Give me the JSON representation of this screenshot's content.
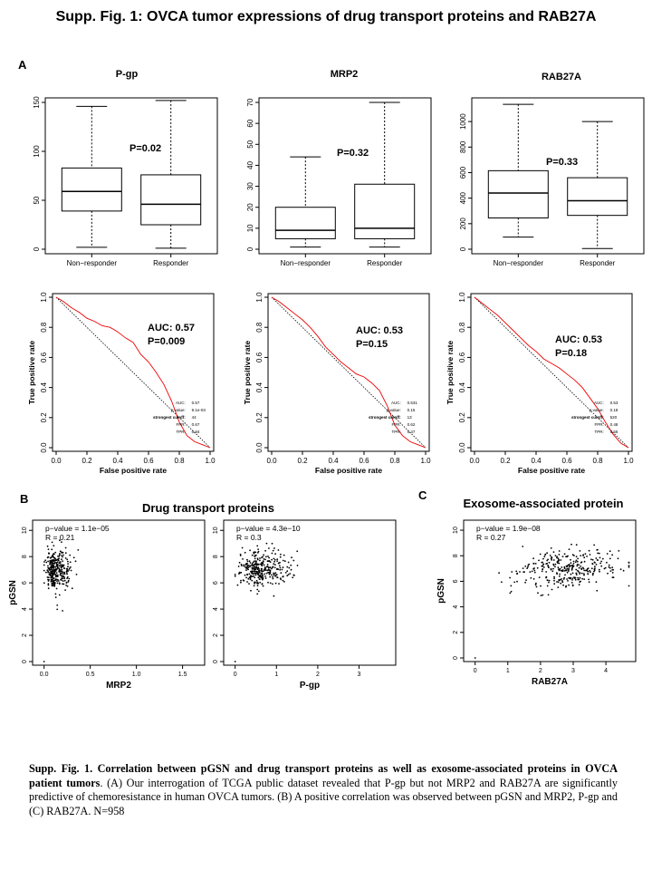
{
  "figure_title": "Supp. Fig. 1: OVCA tumor expressions of drug transport proteins and RAB27A",
  "panel_a": {
    "letter": "A",
    "boxplots": [
      {
        "name": "pgp",
        "title": "P-gp",
        "pvalue": "P=0.02",
        "yticks": [
          "0",
          "50",
          "100",
          "150"
        ],
        "ymax": 150,
        "groups": [
          {
            "label": "Non−responder",
            "min": 2,
            "q1": 39,
            "median": 59,
            "q3": 83,
            "max": 146
          },
          {
            "label": "Responder",
            "min": 1,
            "q1": 25,
            "median": 46,
            "q3": 76,
            "max": 152
          }
        ]
      },
      {
        "name": "mrp2",
        "title": "MRP2",
        "pvalue": "P=0.32",
        "yticks": [
          "0",
          "10",
          "20",
          "30",
          "40",
          "50",
          "60",
          "70"
        ],
        "ymax": 70,
        "groups": [
          {
            "label": "Non−responder",
            "min": 1,
            "q1": 5,
            "median": 9,
            "q3": 20,
            "max": 44
          },
          {
            "label": "Responder",
            "min": 1,
            "q1": 5,
            "median": 10,
            "q3": 31,
            "max": 70
          }
        ]
      },
      {
        "name": "rab27a",
        "title": "RAB27A",
        "pvalue": "P=0.33",
        "yticks": [
          "0",
          "200",
          "400",
          "600",
          "800",
          "1000"
        ],
        "ymax": 1150,
        "groups": [
          {
            "label": "Non−responder",
            "min": 95,
            "q1": 245,
            "median": 440,
            "q3": 615,
            "max": 1135
          },
          {
            "label": "Responder",
            "min": 5,
            "q1": 265,
            "median": 380,
            "q3": 560,
            "max": 1000
          }
        ]
      }
    ],
    "roc": [
      {
        "name": "pgp",
        "auc_label": "AUC: 0.57",
        "p_label": "P=0.009",
        "legend": [
          [
            "AUC:",
            "0.57"
          ],
          [
            "p-value:",
            "9.1e-03"
          ],
          [
            "strongest cutoff:",
            "44"
          ],
          [
            "FPR:",
            "0.67"
          ],
          [
            "TPR:",
            "0.84"
          ]
        ],
        "points": [
          [
            0,
            1
          ],
          [
            0.05,
            0.97
          ],
          [
            0.1,
            0.93
          ],
          [
            0.15,
            0.9
          ],
          [
            0.2,
            0.86
          ],
          [
            0.25,
            0.84
          ],
          [
            0.3,
            0.81
          ],
          [
            0.35,
            0.8
          ],
          [
            0.4,
            0.77
          ],
          [
            0.45,
            0.73
          ],
          [
            0.5,
            0.7
          ],
          [
            0.55,
            0.62
          ],
          [
            0.6,
            0.57
          ],
          [
            0.65,
            0.5
          ],
          [
            0.7,
            0.42
          ],
          [
            0.75,
            0.31
          ],
          [
            0.8,
            0.17
          ],
          [
            0.85,
            0.08
          ],
          [
            0.9,
            0.04
          ],
          [
            0.95,
            0.02
          ],
          [
            1,
            0
          ]
        ]
      },
      {
        "name": "mrp2",
        "auc_label": "AUC: 0.53",
        "p_label": "P=0.15",
        "legend": [
          [
            "AUC:",
            "0.531"
          ],
          [
            "p-value:",
            "0.15"
          ],
          [
            "strongest cutoff:",
            "13"
          ],
          [
            "FPR:",
            "0.62"
          ],
          [
            "TPR:",
            "0.47"
          ]
        ],
        "points": [
          [
            0,
            1
          ],
          [
            0.05,
            0.97
          ],
          [
            0.1,
            0.93
          ],
          [
            0.15,
            0.89
          ],
          [
            0.2,
            0.85
          ],
          [
            0.25,
            0.8
          ],
          [
            0.3,
            0.74
          ],
          [
            0.35,
            0.67
          ],
          [
            0.4,
            0.62
          ],
          [
            0.45,
            0.57
          ],
          [
            0.5,
            0.53
          ],
          [
            0.55,
            0.49
          ],
          [
            0.6,
            0.47
          ],
          [
            0.65,
            0.43
          ],
          [
            0.7,
            0.38
          ],
          [
            0.75,
            0.28
          ],
          [
            0.8,
            0.15
          ],
          [
            0.85,
            0.08
          ],
          [
            0.9,
            0.04
          ],
          [
            0.95,
            0.02
          ],
          [
            1,
            0
          ]
        ]
      },
      {
        "name": "rab27a",
        "auc_label": "AUC: 0.53",
        "p_label": "P=0.18",
        "legend": [
          [
            "AUC:",
            "0.53"
          ],
          [
            "p-value:",
            "0.18"
          ],
          [
            "strongest cutoff:",
            "520"
          ],
          [
            "FPR:",
            "0.48"
          ],
          [
            "TPR:",
            "0.55"
          ]
        ],
        "points": [
          [
            0,
            1
          ],
          [
            0.05,
            0.96
          ],
          [
            0.1,
            0.92
          ],
          [
            0.15,
            0.88
          ],
          [
            0.2,
            0.83
          ],
          [
            0.25,
            0.78
          ],
          [
            0.3,
            0.73
          ],
          [
            0.35,
            0.68
          ],
          [
            0.4,
            0.64
          ],
          [
            0.45,
            0.59
          ],
          [
            0.5,
            0.56
          ],
          [
            0.55,
            0.53
          ],
          [
            0.6,
            0.49
          ],
          [
            0.65,
            0.45
          ],
          [
            0.7,
            0.4
          ],
          [
            0.75,
            0.33
          ],
          [
            0.8,
            0.26
          ],
          [
            0.85,
            0.17
          ],
          [
            0.9,
            0.09
          ],
          [
            0.95,
            0.03
          ],
          [
            1,
            0
          ]
        ]
      }
    ],
    "roc_xlabel": "False positive rate",
    "roc_ylabel": "True positive rate",
    "roc_ticks": [
      "0.0",
      "0.2",
      "0.4",
      "0.6",
      "0.8",
      "1.0"
    ]
  },
  "panel_b": {
    "letter": "B",
    "heading": "Drug transport proteins",
    "ylabel": "pGSN",
    "scatters": [
      {
        "name": "mrp2",
        "xlabel": "MRP2",
        "pvalue": "p−value = 1.1e−05",
        "r": "R = 0.21",
        "xticks": [
          "0.0",
          "0.5",
          "1.0",
          "1.5"
        ],
        "xmax": 1.7,
        "xmean": 0.12,
        "xspread": 0.08
      },
      {
        "name": "pgp",
        "xlabel": "P-gp",
        "pvalue": "p−value = 4.3e−10",
        "r": "R = 0.3",
        "xticks": [
          "0",
          "1",
          "2",
          "3"
        ],
        "xmax": 3.8,
        "xmean": 0.6,
        "xspread": 0.4
      }
    ],
    "yticks": [
      "0",
      "2",
      "4",
      "6",
      "8",
      "10"
    ]
  },
  "panel_c": {
    "letter": "C",
    "heading": "Exosome-associated protein",
    "ylabel": "pGSN",
    "scatter": {
      "name": "rab27a",
      "xlabel": "RAB27A",
      "pvalue": "p−value = 1.9e−08",
      "r": "R = 0.27",
      "xticks": [
        "0",
        "1",
        "2",
        "3",
        "4"
      ],
      "xmax": 4.8,
      "xmean": 2.8,
      "xspread": 0.8
    },
    "yticks": [
      "0",
      "2",
      "4",
      "6",
      "8",
      "10"
    ]
  },
  "caption": {
    "bold_part": "Supp. Fig. 1. Correlation between pGSN and drug transport proteins as well as exosome-associated proteins in OVCA patient tumors",
    "text_part": ". (A) Our interrogation of TCGA public dataset revealed that P-gp but not MRP2 and RAB27A are significantly predictive of chemoresistance in human OVCA tumors. (B) A positive correlation was observed between pGSN and MRP2, P-gp and (C) RAB27A. N=958"
  }
}
